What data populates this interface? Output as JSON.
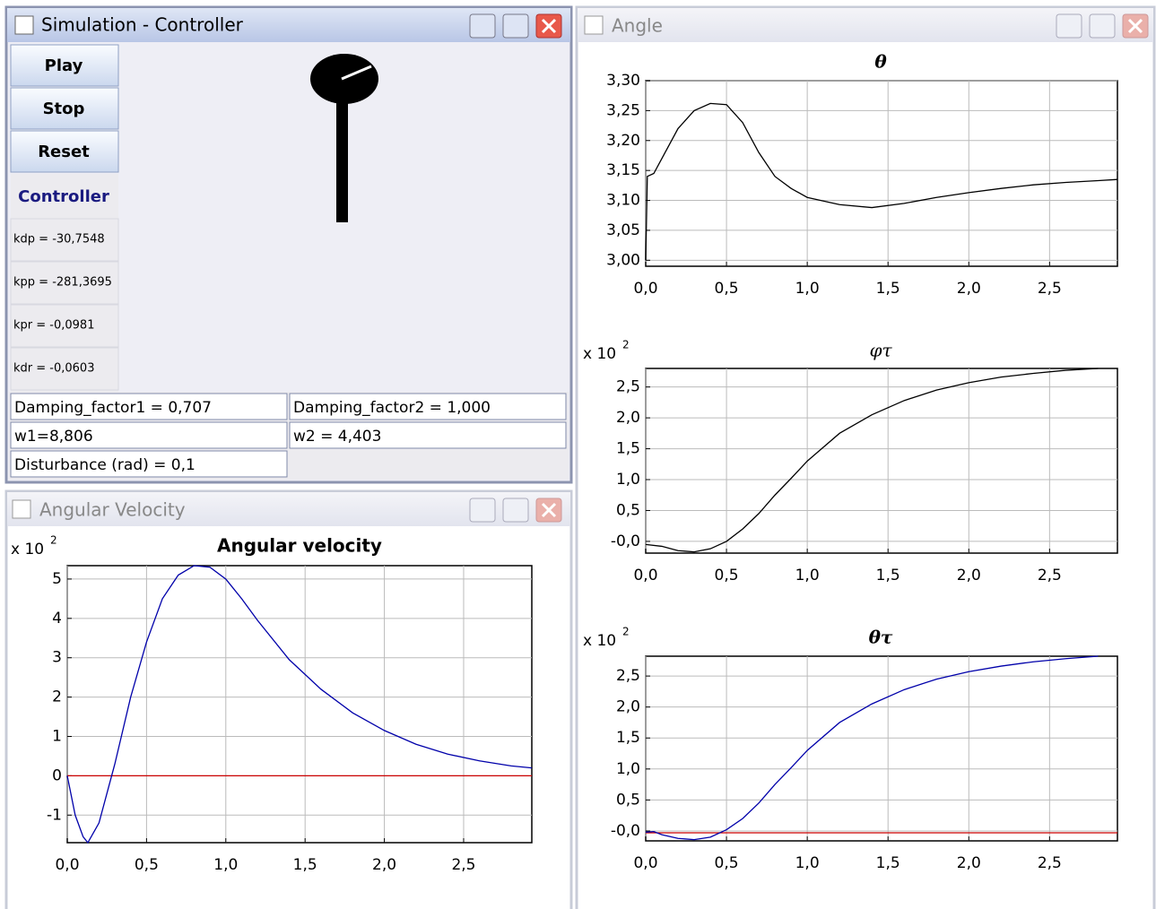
{
  "controller_window": {
    "title": "Simulation - Controller",
    "buttons": [
      "Play",
      "Stop",
      "Reset"
    ],
    "section_label": "Controller",
    "gains": [
      "kdp = -30,7548",
      "kpp = -281,3695",
      "kpr = -0,0981",
      "kdr = -0,0603"
    ],
    "fields": [
      "Damping_factor1 = 0,707",
      "Damping_factor2 = 1,000",
      "w1=8,806",
      "w2 = 4,403",
      "Disturbance  (rad) = 0,1"
    ]
  },
  "velocity_window": {
    "title": "Angular Velocity"
  },
  "angle_window": {
    "title": "Angle"
  },
  "chart_data": [
    {
      "type": "line",
      "title": "θ",
      "grid": true,
      "xlim": [
        0,
        2.92
      ],
      "ylim": [
        2.99,
        3.3
      ],
      "xticks": [
        {
          "value": 0,
          "label": "0,0"
        },
        {
          "value": 0.5,
          "label": "0,5"
        },
        {
          "value": 1,
          "label": "1,0"
        },
        {
          "value": 1.5,
          "label": "1,5"
        },
        {
          "value": 2,
          "label": "2,0"
        },
        {
          "value": 2.5,
          "label": "2,5"
        }
      ],
      "yticks": [
        {
          "value": 3.0,
          "label": "3,00"
        },
        {
          "value": 3.05,
          "label": "3,05"
        },
        {
          "value": 3.1,
          "label": "3,10"
        },
        {
          "value": 3.15,
          "label": "3,15"
        },
        {
          "value": 3.2,
          "label": "3,20"
        },
        {
          "value": 3.25,
          "label": "3,25"
        },
        {
          "value": 3.3,
          "label": "3,30"
        }
      ],
      "series": [
        {
          "color": "#000000",
          "x": [
            0,
            0.01,
            0.05,
            0.1,
            0.2,
            0.3,
            0.4,
            0.5,
            0.6,
            0.7,
            0.8,
            0.9,
            1.0,
            1.2,
            1.4,
            1.6,
            1.8,
            2.0,
            2.2,
            2.4,
            2.6,
            2.8,
            2.92
          ],
          "values": [
            3.0,
            3.14,
            3.145,
            3.17,
            3.22,
            3.25,
            3.262,
            3.26,
            3.23,
            3.18,
            3.14,
            3.12,
            3.105,
            3.093,
            3.088,
            3.095,
            3.105,
            3.113,
            3.12,
            3.126,
            3.13,
            3.133,
            3.135
          ]
        }
      ]
    },
    {
      "type": "line",
      "title": "φτ",
      "grid": true,
      "multiplier": {
        "base": "x 10",
        "exponent": "2"
      },
      "xlim": [
        0,
        2.92
      ],
      "ylim": [
        -0.19,
        2.8
      ],
      "xticks": [
        {
          "value": 0,
          "label": "0,0"
        },
        {
          "value": 0.5,
          "label": "0,5"
        },
        {
          "value": 1,
          "label": "1,0"
        },
        {
          "value": 1.5,
          "label": "1,5"
        },
        {
          "value": 2,
          "label": "2,0"
        },
        {
          "value": 2.5,
          "label": "2,5"
        }
      ],
      "yticks": [
        {
          "value": 0,
          "label": "-0,0"
        },
        {
          "value": 0.5,
          "label": "0,5"
        },
        {
          "value": 1,
          "label": "1,0"
        },
        {
          "value": 1.5,
          "label": "1,5"
        },
        {
          "value": 2,
          "label": "2,0"
        },
        {
          "value": 2.5,
          "label": "2,5"
        }
      ],
      "series": [
        {
          "color": "#000000",
          "x": [
            0,
            0.1,
            0.2,
            0.3,
            0.4,
            0.5,
            0.6,
            0.7,
            0.8,
            0.9,
            1.0,
            1.2,
            1.4,
            1.6,
            1.8,
            2.0,
            2.2,
            2.4,
            2.6,
            2.8
          ],
          "values": [
            -0.05,
            -0.08,
            -0.15,
            -0.17,
            -0.12,
            0.0,
            0.2,
            0.45,
            0.75,
            1.02,
            1.3,
            1.75,
            2.05,
            2.28,
            2.45,
            2.57,
            2.66,
            2.72,
            2.77,
            2.8
          ]
        }
      ]
    },
    {
      "type": "line",
      "title": "θτ",
      "grid": true,
      "multiplier": {
        "base": "x 10",
        "exponent": "2"
      },
      "xlim": [
        0,
        2.92
      ],
      "ylim": [
        -0.16,
        2.82
      ],
      "xticks": [
        {
          "value": 0,
          "label": "0,0"
        },
        {
          "value": 0.5,
          "label": "0,5"
        },
        {
          "value": 1,
          "label": "1,0"
        },
        {
          "value": 1.5,
          "label": "1,5"
        },
        {
          "value": 2,
          "label": "2,0"
        },
        {
          "value": 2.5,
          "label": "2,5"
        }
      ],
      "yticks": [
        {
          "value": 0,
          "label": "-0,0"
        },
        {
          "value": 0.5,
          "label": "0,5"
        },
        {
          "value": 1,
          "label": "1,0"
        },
        {
          "value": 1.5,
          "label": "1,5"
        },
        {
          "value": 2,
          "label": "2,0"
        },
        {
          "value": 2.5,
          "label": "2,5"
        }
      ],
      "series": [
        {
          "color": "#cc0000",
          "x": [
            0,
            2.92
          ],
          "values": [
            -0.03,
            -0.03
          ]
        },
        {
          "color": "#0000aa",
          "x": [
            0,
            0.05,
            0.1,
            0.2,
            0.3,
            0.4,
            0.5,
            0.6,
            0.7,
            0.8,
            0.9,
            1.0,
            1.2,
            1.4,
            1.6,
            1.8,
            2.0,
            2.2,
            2.4,
            2.6,
            2.8
          ],
          "values": [
            -0.02,
            -0.01,
            -0.06,
            -0.12,
            -0.14,
            -0.1,
            0.02,
            0.2,
            0.45,
            0.75,
            1.02,
            1.3,
            1.75,
            2.05,
            2.28,
            2.45,
            2.57,
            2.66,
            2.73,
            2.78,
            2.82
          ]
        }
      ]
    },
    {
      "type": "line",
      "title": "Angular velocity",
      "grid": true,
      "multiplier": {
        "base": "x 10",
        "exponent": "2"
      },
      "xlim": [
        0,
        2.93
      ],
      "ylim": [
        -1.7,
        5.34
      ],
      "xticks": [
        {
          "value": 0,
          "label": "0,0"
        },
        {
          "value": 0.5,
          "label": "0,5"
        },
        {
          "value": 1,
          "label": "1,0"
        },
        {
          "value": 1.5,
          "label": "1,5"
        },
        {
          "value": 2,
          "label": "2,0"
        },
        {
          "value": 2.5,
          "label": "2,5"
        }
      ],
      "yticks": [
        -1,
        0,
        1,
        2,
        3,
        4,
        5
      ],
      "series": [
        {
          "color": "#cc0000",
          "x": [
            0,
            2.93
          ],
          "values": [
            0,
            0
          ]
        },
        {
          "color": "#0000aa",
          "x": [
            0,
            0.05,
            0.1,
            0.13,
            0.2,
            0.3,
            0.4,
            0.5,
            0.6,
            0.7,
            0.8,
            0.9,
            1.0,
            1.1,
            1.2,
            1.4,
            1.6,
            1.8,
            2.0,
            2.2,
            2.4,
            2.6,
            2.8,
            2.93
          ],
          "values": [
            0,
            -1.0,
            -1.55,
            -1.7,
            -1.2,
            0.3,
            2.0,
            3.4,
            4.5,
            5.1,
            5.34,
            5.3,
            5.0,
            4.5,
            3.95,
            2.95,
            2.2,
            1.6,
            1.15,
            0.8,
            0.55,
            0.38,
            0.25,
            0.2
          ]
        }
      ]
    }
  ]
}
